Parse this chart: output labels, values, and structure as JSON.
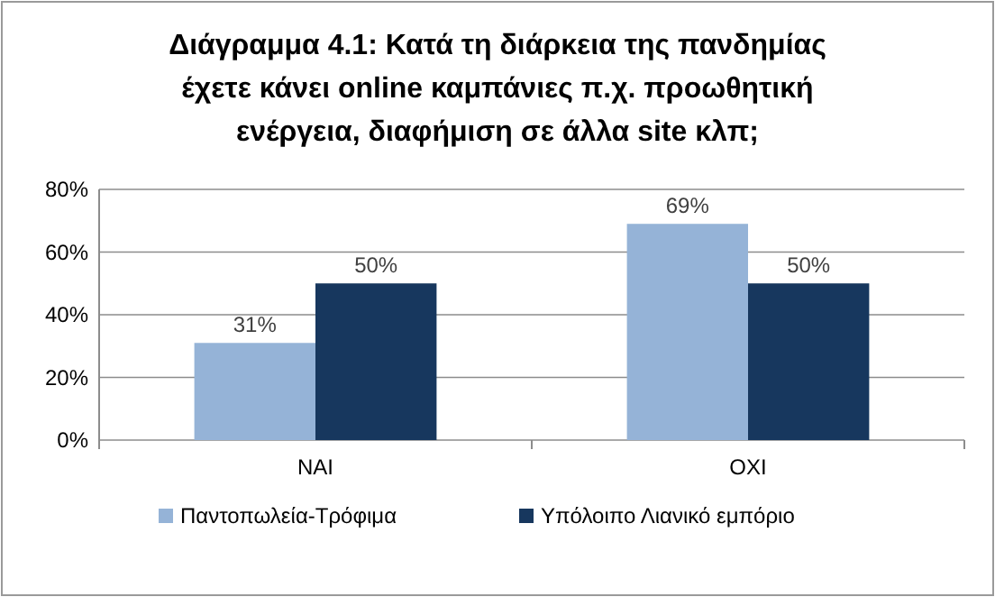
{
  "chart_data": {
    "type": "bar",
    "title": "Διάγραμμα 4.1: Κατά τη διάρκεια της πανδημίας έχετε κάνει online καμπάνιες π.χ. προωθητική ενέργεια, διαφήμιση σε άλλα site κλπ;",
    "categories": [
      "ΝΑΙ",
      "ΟΧΙ"
    ],
    "series": [
      {
        "name": "Παντοπωλεία-Τρόφιμα",
        "color": "#95b3d7",
        "values": [
          31,
          69
        ],
        "value_labels": [
          "31%",
          "69%"
        ]
      },
      {
        "name": "Υπόλοιπο Λιανικό εμπόριο",
        "color": "#17375e",
        "values": [
          50,
          50
        ],
        "value_labels": [
          "50%",
          "50%"
        ]
      }
    ],
    "ylim": [
      0,
      80
    ],
    "yticks": [
      {
        "value": 0,
        "label": "0%"
      },
      {
        "value": 20,
        "label": "20%"
      },
      {
        "value": 40,
        "label": "40%"
      },
      {
        "value": 60,
        "label": "60%"
      },
      {
        "value": 80,
        "label": "80%"
      }
    ],
    "grid": true,
    "legend": "bottom"
  }
}
